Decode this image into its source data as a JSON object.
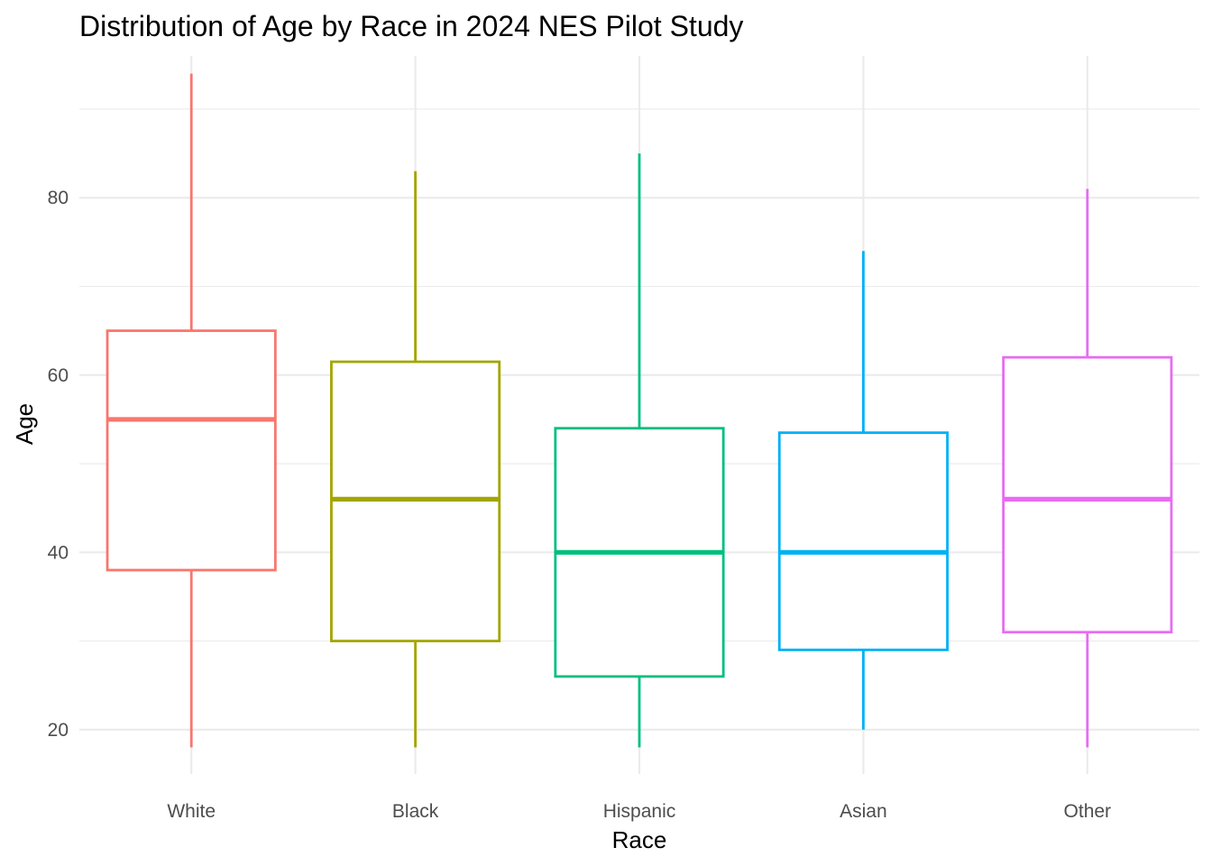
{
  "chart_data": {
    "type": "boxplot",
    "title": "Distribution of Age by Race in 2024 NES Pilot Study",
    "xlabel": "Race",
    "ylabel": "Age",
    "ylim": [
      15,
      96
    ],
    "y_ticks": [
      20,
      40,
      60,
      80
    ],
    "y_minor_ticks": [
      30,
      50,
      70,
      90
    ],
    "grid": true,
    "legend": "none",
    "categories": [
      "White",
      "Black",
      "Hispanic",
      "Asian",
      "Other"
    ],
    "series": [
      {
        "category": "White",
        "color": "#F8766D",
        "min": 18,
        "q1": 38,
        "median": 55,
        "q3": 65,
        "max": 94
      },
      {
        "category": "Black",
        "color": "#A3A500",
        "min": 18,
        "q1": 30,
        "median": 46,
        "q3": 61.5,
        "max": 83
      },
      {
        "category": "Hispanic",
        "color": "#00BF7D",
        "min": 18,
        "q1": 26,
        "median": 40,
        "q3": 54,
        "max": 85
      },
      {
        "category": "Asian",
        "color": "#00B0F6",
        "min": 20,
        "q1": 29,
        "median": 40,
        "q3": 53.5,
        "max": 74
      },
      {
        "category": "Other",
        "color": "#E76BF3",
        "min": 18,
        "q1": 31,
        "median": 46,
        "q3": 62,
        "max": 81
      }
    ]
  }
}
